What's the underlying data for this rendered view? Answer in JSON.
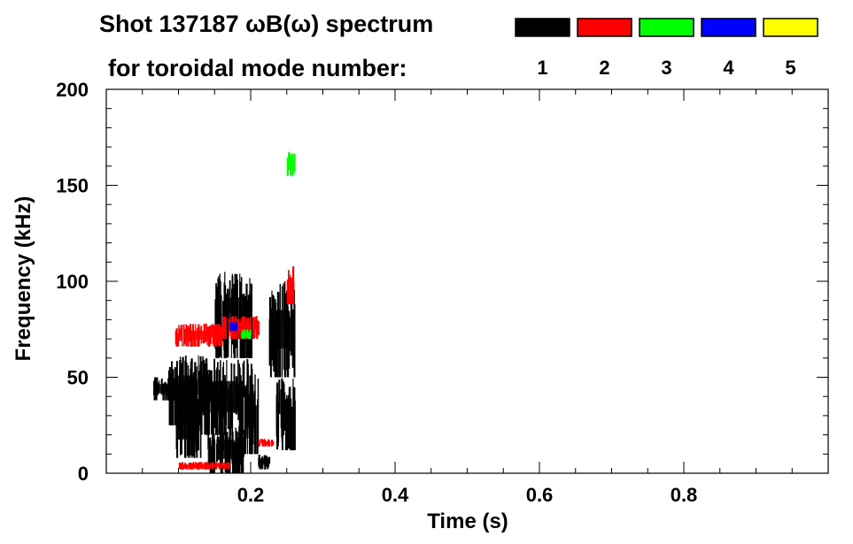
{
  "chart_data": {
    "type": "heatmap",
    "title_line1": "Shot 137187 ωB(ω) spectrum",
    "title_line2": "for toroidal mode number:",
    "xlabel": "Time (s)",
    "ylabel": "Frequency (kHz)",
    "xlim": [
      0.0,
      1.0
    ],
    "ylim": [
      0,
      200
    ],
    "x_ticks": [
      0.2,
      0.4,
      0.6,
      0.8
    ],
    "x_tick_labels": [
      "0.2",
      "0.4",
      "0.6",
      "0.8"
    ],
    "y_ticks": [
      0,
      50,
      100,
      150,
      200
    ],
    "y_tick_labels": [
      "0",
      "50",
      "100",
      "150",
      "200"
    ],
    "legend": [
      {
        "mode": "1",
        "color": "#000000"
      },
      {
        "mode": "2",
        "color": "#ff0000"
      },
      {
        "mode": "3",
        "color": "#00ff00"
      },
      {
        "mode": "4",
        "color": "#0000ff"
      },
      {
        "mode": "5",
        "color": "#ffff00"
      }
    ],
    "regions": [
      {
        "mode": "1",
        "t": [
          0.065,
          0.095
        ],
        "f": [
          38,
          50
        ]
      },
      {
        "mode": "1",
        "t": [
          0.085,
          0.135
        ],
        "f": [
          25,
          62
        ]
      },
      {
        "mode": "1",
        "t": [
          0.095,
          0.13
        ],
        "f": [
          8,
          40
        ]
      },
      {
        "mode": "1",
        "t": [
          0.13,
          0.2
        ],
        "f": [
          20,
          60
        ]
      },
      {
        "mode": "1",
        "t": [
          0.14,
          0.19
        ],
        "f": [
          0,
          25
        ]
      },
      {
        "mode": "1",
        "t": [
          0.15,
          0.2
        ],
        "f": [
          60,
          105
        ]
      },
      {
        "mode": "1",
        "t": [
          0.19,
          0.21
        ],
        "f": [
          10,
          55
        ]
      },
      {
        "mode": "1",
        "t": [
          0.21,
          0.225
        ],
        "f": [
          2,
          10
        ]
      },
      {
        "mode": "1",
        "t": [
          0.225,
          0.26
        ],
        "f": [
          50,
          100
        ]
      },
      {
        "mode": "1",
        "t": [
          0.235,
          0.26
        ],
        "f": [
          12,
          50
        ]
      },
      {
        "mode": "2",
        "t": [
          0.095,
          0.16
        ],
        "f": [
          66,
          78
        ]
      },
      {
        "mode": "2",
        "t": [
          0.16,
          0.21
        ],
        "f": [
          70,
          82
        ]
      },
      {
        "mode": "2",
        "t": [
          0.1,
          0.17
        ],
        "f": [
          2,
          6
        ]
      },
      {
        "mode": "2",
        "t": [
          0.21,
          0.23
        ],
        "f": [
          14,
          18
        ]
      },
      {
        "mode": "2",
        "t": [
          0.25,
          0.26
        ],
        "f": [
          88,
          108
        ]
      },
      {
        "mode": "3",
        "t": [
          0.185,
          0.2
        ],
        "f": [
          70,
          75
        ]
      },
      {
        "mode": "3",
        "t": [
          0.25,
          0.26
        ],
        "f": [
          155,
          168
        ]
      },
      {
        "mode": "4",
        "t": [
          0.17,
          0.18
        ],
        "f": [
          74,
          79
        ]
      }
    ]
  }
}
